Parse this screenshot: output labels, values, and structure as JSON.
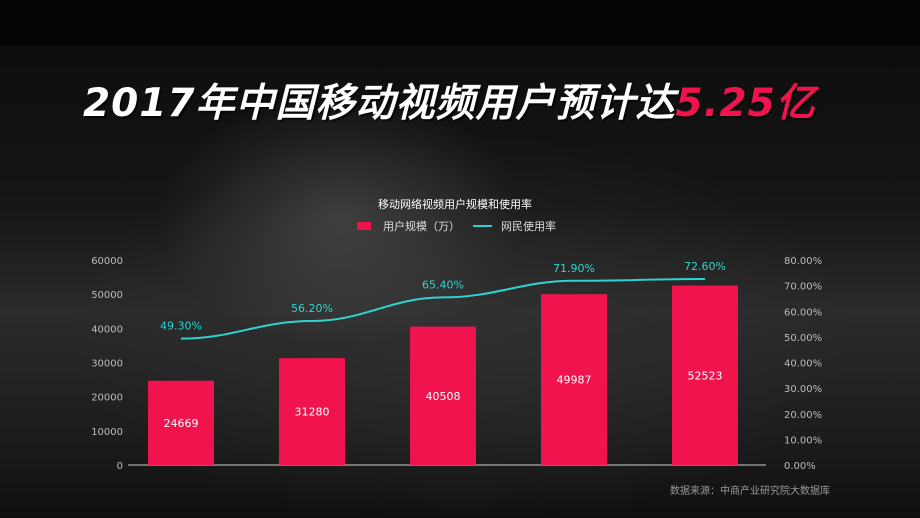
{
  "title": {
    "main": "2017年中国移动视频用户预计达",
    "highlight": "5.25亿"
  },
  "source_note": "数据来源：中商产业研究院大数据库",
  "chart_data": {
    "type": "bar",
    "title": "移动网络视频用户规模和使用率",
    "categories": [
      "",
      "",
      "",
      "",
      ""
    ],
    "series": [
      {
        "name": "用户规模（万）",
        "type": "bar",
        "axis": "left",
        "values": [
          24669,
          31280,
          40508,
          49987,
          52523
        ],
        "labels": [
          "24669",
          "31280",
          "40508",
          "49987",
          "52523"
        ]
      },
      {
        "name": "网民使用率",
        "type": "line",
        "axis": "right",
        "values": [
          49.3,
          56.2,
          65.4,
          71.9,
          72.6
        ],
        "labels": [
          "49.30%",
          "56.20%",
          "65.40%",
          "71.90%",
          "72.60%"
        ]
      }
    ],
    "left_axis": {
      "ylim": [
        0,
        60000
      ],
      "ticks": [
        "0",
        "10000",
        "20000",
        "30000",
        "40000",
        "50000",
        "60000"
      ]
    },
    "right_axis": {
      "ylim": [
        0,
        80
      ],
      "ticks": [
        "0.00%",
        "10.00%",
        "20.00%",
        "30.00%",
        "40.00%",
        "50.00%",
        "60.00%",
        "70.00%",
        "80.00%"
      ]
    },
    "legend_position": "top-center",
    "grid": false,
    "colors": {
      "bar": "#f0134d",
      "line": "#2ed3d0",
      "text": "#ffffff",
      "axis": "#bbbbbb"
    }
  }
}
